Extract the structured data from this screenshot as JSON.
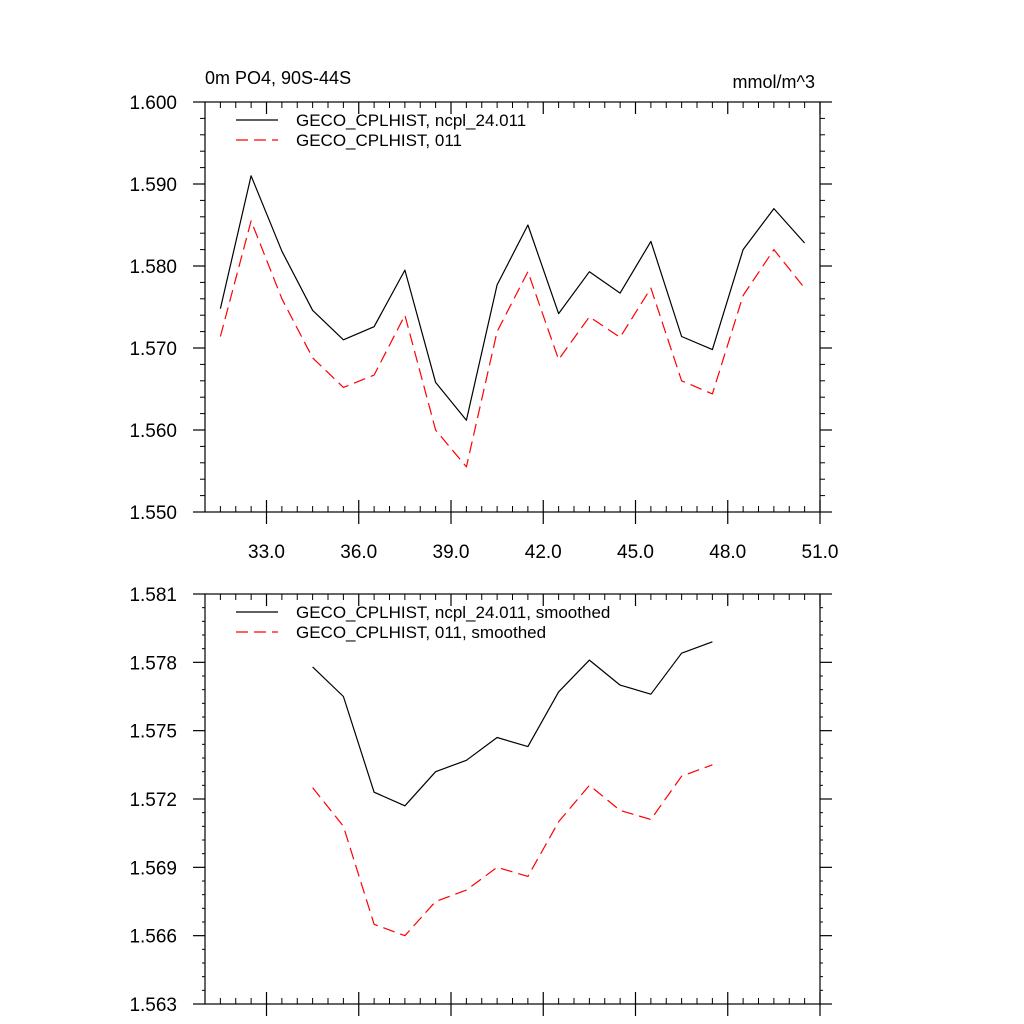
{
  "chart_data": [
    {
      "type": "line",
      "title": "0m PO4, 90S-44S",
      "units": "mmol/m^3",
      "xlim": [
        31.0,
        51.0
      ],
      "ylim": [
        1.55,
        1.6
      ],
      "x_ticks": [
        33.0,
        36.0,
        39.0,
        42.0,
        45.0,
        48.0,
        51.0
      ],
      "x_tick_labels": [
        "33.0",
        "36.0",
        "39.0",
        "42.0",
        "45.0",
        "48.0",
        "51.0"
      ],
      "y_ticks": [
        1.55,
        1.56,
        1.57,
        1.58,
        1.59,
        1.6
      ],
      "y_tick_labels": [
        "1.550",
        "1.560",
        "1.570",
        "1.580",
        "1.590",
        "1.600"
      ],
      "legend_placement": "top-left",
      "x": [
        31.5,
        32.5,
        33.5,
        34.5,
        35.5,
        36.5,
        37.5,
        38.5,
        39.5,
        40.5,
        41.5,
        42.5,
        43.5,
        44.5,
        45.5,
        46.5,
        47.5,
        48.5,
        49.5,
        50.5
      ],
      "series": [
        {
          "name": "GECO_CPLHIST, ncpl_24.011",
          "color": "#000000",
          "dash": "solid",
          "values": [
            1.5748,
            1.591,
            1.5818,
            1.5746,
            1.571,
            1.5726,
            1.5795,
            1.5658,
            1.5612,
            1.5777,
            1.585,
            1.5742,
            1.5793,
            1.5767,
            1.583,
            1.5714,
            1.5698,
            1.582,
            1.587,
            1.5828
          ]
        },
        {
          "name": "GECO_CPLHIST, 011",
          "color": "#ff0000",
          "dash": "dashed",
          "values": [
            1.5714,
            1.5855,
            1.576,
            1.5688,
            1.5652,
            1.5667,
            1.574,
            1.56,
            1.5555,
            1.572,
            1.5793,
            1.5686,
            1.5738,
            1.5713,
            1.5773,
            1.566,
            1.5644,
            1.5764,
            1.582,
            1.5773
          ]
        }
      ]
    },
    {
      "type": "line",
      "xlim": [
        31.0,
        51.0
      ],
      "ylim": [
        1.563,
        1.581
      ],
      "x_ticks": [
        33.0,
        36.0,
        39.0,
        42.0,
        45.0,
        48.0,
        51.0
      ],
      "y_ticks": [
        1.563,
        1.566,
        1.569,
        1.572,
        1.575,
        1.578,
        1.581
      ],
      "y_tick_labels": [
        "1.563",
        "1.566",
        "1.569",
        "1.572",
        "1.575",
        "1.578",
        "1.581"
      ],
      "legend_placement": "top-left",
      "x": [
        34.5,
        35.5,
        36.5,
        37.5,
        38.5,
        39.5,
        40.5,
        41.5,
        42.5,
        43.5,
        44.5,
        45.5,
        46.5,
        47.5
      ],
      "series": [
        {
          "name": "GECO_CPLHIST, ncpl_24.011, smoothed",
          "color": "#000000",
          "dash": "solid",
          "values": [
            1.5778,
            1.5765,
            1.5723,
            1.5717,
            1.5732,
            1.5737,
            1.5747,
            1.5743,
            1.5767,
            1.5781,
            1.577,
            1.5766,
            1.5784,
            1.5789
          ]
        },
        {
          "name": "GECO_CPLHIST, 011, smoothed",
          "color": "#ff0000",
          "dash": "dashed",
          "values": [
            1.5725,
            1.5708,
            1.5665,
            1.566,
            1.5675,
            1.568,
            1.569,
            1.5686,
            1.571,
            1.5726,
            1.5715,
            1.5711,
            1.573,
            1.5735
          ]
        }
      ]
    }
  ]
}
